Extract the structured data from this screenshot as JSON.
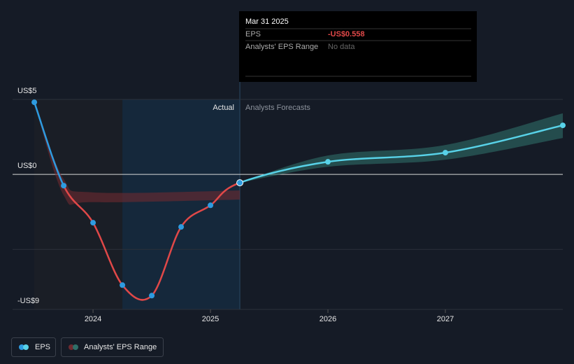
{
  "chart_data": {
    "type": "line",
    "xlim": [
      2023.315,
      2028
    ],
    "xticks": [
      2024,
      2025,
      2026,
      2027
    ],
    "ylim": [
      -9,
      5
    ],
    "yticks": [
      {
        "value": 5,
        "label": "US$5"
      },
      {
        "value": 0,
        "label": "US$0"
      },
      {
        "value": -5
      },
      {
        "value": -9,
        "label": "-US$9"
      }
    ],
    "grid": true,
    "highlight": [
      2024.25,
      2025.25
    ],
    "forecast_start": 2025.25,
    "region_labels": {
      "actual": "Actual",
      "forecast": "Analysts Forecasts"
    },
    "series": [
      {
        "name": "EPS",
        "color": "#58d2e8",
        "actual_color": "#2e9be0",
        "negative_color": "#e04848",
        "x": [
          2023.5,
          2023.75,
          2024.0,
          2024.25,
          2024.5,
          2024.75,
          2025.0,
          2025.25,
          2026,
          2027,
          2028
        ],
        "values": [
          4.81,
          -0.75,
          -3.22,
          -7.38,
          -8.08,
          -3.5,
          -2.06,
          -0.558,
          0.84,
          1.45,
          3.27
        ]
      }
    ],
    "ranges": [
      {
        "name": "Analysts' EPS Range",
        "color": "#2f6e68",
        "x": [
          2025.25,
          2026,
          2027,
          2028
        ],
        "low": [
          -0.558,
          0.51,
          0.98,
          2.43
        ],
        "high": [
          -0.558,
          1.26,
          1.96,
          4.07
        ]
      },
      {
        "color": "#6e2a30",
        "x": [
          2023.5,
          2023.75,
          2024.0,
          2025.25
        ],
        "low": [
          4.81,
          -1.4,
          -1.85,
          -1.68
        ],
        "high": [
          4.81,
          -0.3,
          -1.2,
          -1.07
        ]
      }
    ],
    "tooltip": {
      "date": "Mar 31 2025",
      "rows": [
        {
          "label": "EPS",
          "value": "-US$0.558"
        },
        {
          "label": "Analysts' EPS Range",
          "value": "No data"
        }
      ]
    }
  }
}
